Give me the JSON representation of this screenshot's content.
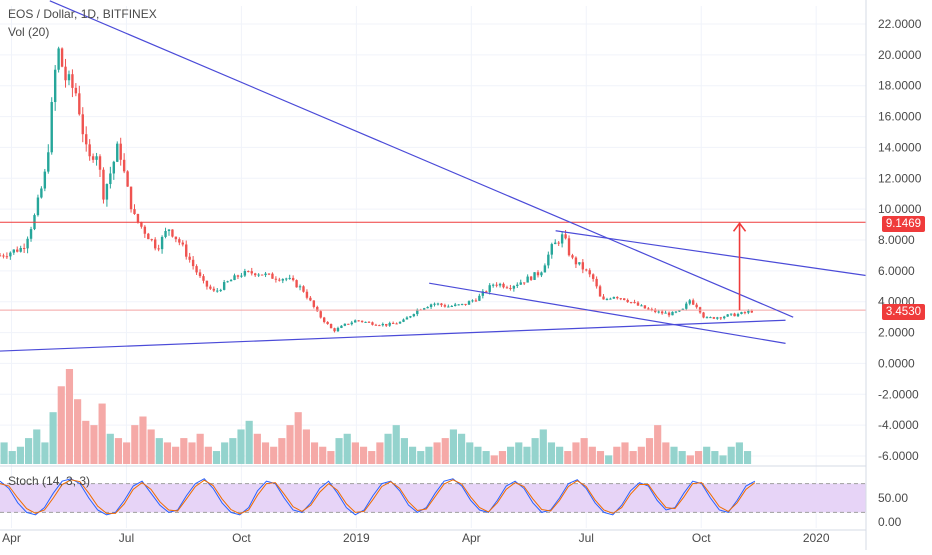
{
  "chart_data": [
    {
      "type": "candlestick",
      "title": "EOS / Dollar, 1D, BITFINEX",
      "volume_label": "Vol (20)",
      "y_ticks": [
        "22.0000",
        "20.0000",
        "18.0000",
        "16.0000",
        "14.0000",
        "12.0000",
        "10.0000",
        "8.0000",
        "6.0000",
        "4.0000",
        "2.0000",
        "0.0000",
        "-2.0000",
        "-4.0000",
        "-6.0000"
      ],
      "y_tick_values": [
        22,
        20,
        18,
        16,
        14,
        12,
        10,
        8,
        6,
        4,
        2,
        0,
        -2,
        -4,
        -6
      ],
      "ylim": [
        -6.5,
        23
      ],
      "x_ticks": [
        "Apr",
        "Jul",
        "Oct",
        "2019",
        "Apr",
        "Jul",
        "Oct",
        "2020"
      ],
      "x_tick_months": [
        0,
        3,
        6,
        9,
        12,
        15,
        18,
        21
      ],
      "x_range_months": [
        -0.3,
        22.3
      ],
      "price_path": [
        [
          -0.3,
          7.0
        ],
        [
          0.3,
          7.5
        ],
        [
          0.6,
          9.5
        ],
        [
          0.9,
          12.5
        ],
        [
          1.2,
          20.5
        ],
        [
          1.4,
          18.5
        ],
        [
          1.7,
          17.5
        ],
        [
          2.0,
          13.0
        ],
        [
          2.2,
          14.0
        ],
        [
          2.4,
          11.0
        ],
        [
          2.6,
          12.5
        ],
        [
          2.8,
          14.2
        ],
        [
          3.0,
          11.5
        ],
        [
          3.2,
          9.5
        ],
        [
          3.5,
          8.5
        ],
        [
          3.8,
          7.5
        ],
        [
          4.1,
          8.8
        ],
        [
          4.4,
          7.8
        ],
        [
          4.7,
          6.5
        ],
        [
          5.0,
          5.2
        ],
        [
          5.3,
          4.6
        ],
        [
          5.6,
          5.2
        ],
        [
          6.0,
          5.8
        ],
        [
          6.4,
          5.9
        ],
        [
          6.8,
          5.6
        ],
        [
          7.2,
          5.5
        ],
        [
          7.6,
          4.8
        ],
        [
          8.0,
          3.2
        ],
        [
          8.4,
          2.1
        ],
        [
          8.7,
          2.5
        ],
        [
          9.0,
          2.8
        ],
        [
          9.4,
          2.6
        ],
        [
          9.8,
          2.5
        ],
        [
          10.2,
          2.7
        ],
        [
          10.6,
          3.5
        ],
        [
          11.0,
          3.9
        ],
        [
          11.4,
          3.7
        ],
        [
          11.8,
          3.8
        ],
        [
          12.2,
          4.3
        ],
        [
          12.6,
          5.2
        ],
        [
          13.0,
          5.0
        ],
        [
          13.4,
          5.4
        ],
        [
          13.8,
          5.9
        ],
        [
          14.1,
          7.5
        ],
        [
          14.4,
          8.3
        ],
        [
          14.6,
          6.8
        ],
        [
          14.9,
          6.2
        ],
        [
          15.2,
          5.4
        ],
        [
          15.4,
          4.0
        ],
        [
          15.7,
          4.4
        ],
        [
          16.0,
          4.2
        ],
        [
          16.3,
          3.8
        ],
        [
          16.6,
          3.5
        ],
        [
          16.9,
          3.3
        ],
        [
          17.2,
          3.2
        ],
        [
          17.5,
          3.4
        ],
        [
          17.7,
          4.1
        ],
        [
          17.9,
          3.7
        ],
        [
          18.1,
          2.9
        ],
        [
          18.4,
          3.0
        ],
        [
          18.7,
          3.1
        ],
        [
          19.0,
          3.2
        ],
        [
          19.4,
          3.45
        ]
      ],
      "horizontal_levels": [
        {
          "label": "9.1469",
          "value": 9.1469,
          "color": "#ef3b3b"
        },
        {
          "label": "3.4530",
          "value": 3.453,
          "color": "#f3a3a3"
        }
      ],
      "trend_lines": [
        {
          "from": [
            1.0,
            23.5
          ],
          "to": [
            20.4,
            3.0
          ]
        },
        {
          "from": [
            -0.3,
            0.8
          ],
          "to": [
            20.2,
            2.8
          ]
        },
        {
          "from": [
            10.9,
            5.2
          ],
          "to": [
            20.2,
            1.3
          ]
        },
        {
          "from": [
            14.2,
            8.6
          ],
          "to": [
            22.3,
            5.7
          ]
        }
      ],
      "arrow": {
        "x": 19.0,
        "from": 3.45,
        "to": 9.1469,
        "color": "#ef3b3b"
      },
      "volume_bars": [
        5,
        3,
        4,
        6,
        8,
        5,
        12,
        18,
        22,
        15,
        10,
        9,
        14,
        7,
        6,
        5,
        9,
        11,
        8,
        6,
        5,
        4,
        6,
        5,
        7,
        4,
        3,
        5,
        6,
        8,
        10,
        7,
        5,
        4,
        6,
        9,
        12,
        8,
        5,
        4,
        3,
        6,
        7,
        5,
        4,
        3,
        5,
        7,
        9,
        6,
        4,
        3,
        4,
        5,
        6,
        8,
        7,
        5,
        4,
        3,
        2,
        3,
        4,
        5,
        4,
        6,
        8,
        5,
        4,
        3,
        5,
        6,
        4,
        3,
        2,
        4,
        5,
        3,
        4,
        6,
        9,
        5,
        4,
        3,
        2,
        3,
        4,
        3,
        2,
        4,
        5,
        3,
        2,
        3,
        4,
        2,
        3,
        2,
        6,
        3,
        2,
        2,
        3,
        2,
        1,
        2
      ]
    },
    {
      "type": "line",
      "title": "Stoch (14, 3, 3)",
      "y_ticks": [
        "50.00",
        "0.00"
      ],
      "y_tick_values": [
        50,
        0
      ],
      "ylim": [
        0,
        100
      ],
      "band": [
        20,
        80
      ],
      "series": [
        {
          "color": "#2962ff",
          "values": [
            85,
            70,
            40,
            20,
            15,
            30,
            60,
            85,
            90,
            80,
            50,
            25,
            15,
            20,
            45,
            75,
            85,
            60,
            35,
            20,
            25,
            55,
            80,
            90,
            70,
            40,
            20,
            15,
            30,
            65,
            85,
            80,
            50,
            25,
            20,
            40,
            70,
            85,
            60,
            30,
            15,
            25,
            55,
            80,
            85,
            65,
            35,
            20,
            30,
            60,
            85,
            90,
            75,
            45,
            25,
            20,
            45,
            75,
            85,
            70,
            40,
            20,
            25,
            50,
            80,
            88,
            70,
            40,
            20,
            15,
            35,
            65,
            82,
            75,
            45,
            25,
            30,
            60,
            85,
            80,
            50,
            25,
            20,
            45,
            75,
            85
          ]
        },
        {
          "color": "#ef6c00",
          "values": [
            80,
            75,
            50,
            28,
            18,
            25,
            50,
            78,
            88,
            84,
            60,
            33,
            18,
            18,
            38,
            68,
            82,
            68,
            42,
            25,
            23,
            48,
            74,
            87,
            76,
            48,
            26,
            17,
            25,
            56,
            80,
            82,
            58,
            32,
            22,
            35,
            62,
            80,
            66,
            38,
            20,
            22,
            47,
            74,
            84,
            70,
            42,
            24,
            27,
            53,
            79,
            88,
            79,
            52,
            30,
            21,
            40,
            68,
            82,
            74,
            48,
            26,
            23,
            45,
            74,
            86,
            74,
            46,
            25,
            18,
            30,
            58,
            78,
            78,
            52,
            30,
            28,
            52,
            80,
            82,
            58,
            32,
            22,
            40,
            68,
            82
          ]
        }
      ]
    }
  ],
  "colors": {
    "up": "#26a69a",
    "down": "#ef5350",
    "volume_up": "#94d3cd",
    "volume_down": "#f5a9a7",
    "trend": "#4b4bd8",
    "stoch_fill": "#e7d4f7"
  }
}
